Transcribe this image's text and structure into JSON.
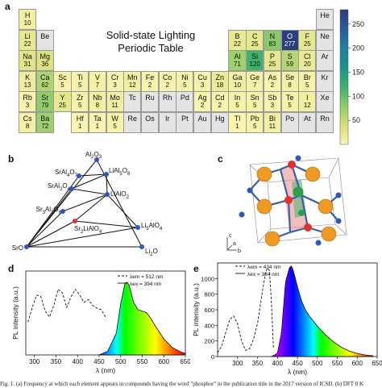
{
  "panel_a": {
    "letter": "a",
    "title_line1": "Solid-state Lighting",
    "title_line2": "Periodic Table",
    "colorbar": {
      "ticks": [
        250,
        200,
        150,
        100,
        50
      ],
      "range": [
        0,
        280
      ],
      "colors": [
        "#fbf5b0",
        "#d8e07a",
        "#8ecb6a",
        "#3fb06d",
        "#17968a",
        "#1f7fa0",
        "#2a5d96",
        "#2c3a7a"
      ]
    },
    "elements": [
      {
        "s": "H",
        "n": "10",
        "r": 0,
        "c": 0,
        "v": 10
      },
      {
        "s": "He",
        "n": "",
        "r": 0,
        "c": 17,
        "v": null
      },
      {
        "s": "Li",
        "n": "22",
        "r": 1,
        "c": 0,
        "v": 22
      },
      {
        "s": "Be",
        "n": "",
        "r": 1,
        "c": 1,
        "v": null
      },
      {
        "s": "B",
        "n": "22",
        "r": 1,
        "c": 12,
        "v": 22
      },
      {
        "s": "C",
        "n": "25",
        "r": 1,
        "c": 13,
        "v": 25
      },
      {
        "s": "N",
        "n": "83",
        "r": 1,
        "c": 14,
        "v": 83
      },
      {
        "s": "O",
        "n": "277",
        "r": 1,
        "c": 15,
        "v": 277
      },
      {
        "s": "F",
        "n": "25",
        "r": 1,
        "c": 16,
        "v": 25
      },
      {
        "s": "Ne",
        "n": "",
        "r": 1,
        "c": 17,
        "v": null
      },
      {
        "s": "Na",
        "n": "31",
        "r": 2,
        "c": 0,
        "v": 31
      },
      {
        "s": "Mg",
        "n": "36",
        "r": 2,
        "c": 1,
        "v": 36
      },
      {
        "s": "Al",
        "n": "71",
        "r": 2,
        "c": 12,
        "v": 71
      },
      {
        "s": "Si",
        "n": "120",
        "r": 2,
        "c": 13,
        "v": 120
      },
      {
        "s": "P",
        "n": "25",
        "r": 2,
        "c": 14,
        "v": 25
      },
      {
        "s": "S",
        "n": "59",
        "r": 2,
        "c": 15,
        "v": 59
      },
      {
        "s": "Cl",
        "n": "20",
        "r": 2,
        "c": 16,
        "v": 20
      },
      {
        "s": "Ar",
        "n": "",
        "r": 2,
        "c": 17,
        "v": null
      },
      {
        "s": "K",
        "n": "13",
        "r": 3,
        "c": 0,
        "v": 13
      },
      {
        "s": "Ca",
        "n": "62",
        "r": 3,
        "c": 1,
        "v": 62
      },
      {
        "s": "Sc",
        "n": "5",
        "r": 3,
        "c": 2,
        "v": 5
      },
      {
        "s": "Ti",
        "n": "5",
        "r": 3,
        "c": 3,
        "v": 5
      },
      {
        "s": "V",
        "n": "7",
        "r": 3,
        "c": 4,
        "v": 7
      },
      {
        "s": "Cr",
        "n": "3",
        "r": 3,
        "c": 5,
        "v": 3
      },
      {
        "s": "Mn",
        "n": "12",
        "r": 3,
        "c": 6,
        "v": 12
      },
      {
        "s": "Fe",
        "n": "2",
        "r": 3,
        "c": 7,
        "v": 2
      },
      {
        "s": "Co",
        "n": "2",
        "r": 3,
        "c": 8,
        "v": 2
      },
      {
        "s": "Ni",
        "n": "5",
        "r": 3,
        "c": 9,
        "v": 5
      },
      {
        "s": "Cu",
        "n": "3",
        "r": 3,
        "c": 10,
        "v": 3
      },
      {
        "s": "Zn",
        "n": "18",
        "r": 3,
        "c": 11,
        "v": 18
      },
      {
        "s": "Ga",
        "n": "10",
        "r": 3,
        "c": 12,
        "v": 10
      },
      {
        "s": "Ge",
        "n": "7",
        "r": 3,
        "c": 13,
        "v": 7
      },
      {
        "s": "As",
        "n": "2",
        "r": 3,
        "c": 14,
        "v": 2
      },
      {
        "s": "Se",
        "n": "8",
        "r": 3,
        "c": 15,
        "v": 8
      },
      {
        "s": "Br",
        "n": "5",
        "r": 3,
        "c": 16,
        "v": 5
      },
      {
        "s": "Kr",
        "n": "",
        "r": 3,
        "c": 17,
        "v": null
      },
      {
        "s": "Rb",
        "n": "3",
        "r": 4,
        "c": 0,
        "v": 3
      },
      {
        "s": "Sr",
        "n": "79",
        "r": 4,
        "c": 1,
        "v": 79
      },
      {
        "s": "Y",
        "n": "25",
        "r": 4,
        "c": 2,
        "v": 25
      },
      {
        "s": "Zr",
        "n": "5",
        "r": 4,
        "c": 3,
        "v": 5
      },
      {
        "s": "Nb",
        "n": "8",
        "r": 4,
        "c": 4,
        "v": 8
      },
      {
        "s": "Mo",
        "n": "11",
        "r": 4,
        "c": 5,
        "v": 11
      },
      {
        "s": "Tc",
        "n": "",
        "r": 4,
        "c": 6,
        "v": null
      },
      {
        "s": "Ru",
        "n": "",
        "r": 4,
        "c": 7,
        "v": null
      },
      {
        "s": "Rh",
        "n": "",
        "r": 4,
        "c": 8,
        "v": null
      },
      {
        "s": "Pd",
        "n": "",
        "r": 4,
        "c": 9,
        "v": null
      },
      {
        "s": "Ag",
        "n": "2",
        "r": 4,
        "c": 10,
        "v": 2
      },
      {
        "s": "Cd",
        "n": "2",
        "r": 4,
        "c": 11,
        "v": 2
      },
      {
        "s": "In",
        "n": "5",
        "r": 4,
        "c": 12,
        "v": 5
      },
      {
        "s": "Sn",
        "n": "5",
        "r": 4,
        "c": 13,
        "v": 5
      },
      {
        "s": "Sb",
        "n": "3",
        "r": 4,
        "c": 14,
        "v": 3
      },
      {
        "s": "Te",
        "n": "5",
        "r": 4,
        "c": 15,
        "v": 5
      },
      {
        "s": "I",
        "n": "12",
        "r": 4,
        "c": 16,
        "v": 12
      },
      {
        "s": "Xe",
        "n": "",
        "r": 4,
        "c": 17,
        "v": null
      },
      {
        "s": "Cs",
        "n": "8",
        "r": 5,
        "c": 0,
        "v": 8
      },
      {
        "s": "Ba",
        "n": "72",
        "r": 5,
        "c": 1,
        "v": 72
      },
      {
        "s": "Hf",
        "n": "1",
        "r": 5,
        "c": 3,
        "v": 1
      },
      {
        "s": "Ta",
        "n": "1",
        "r": 5,
        "c": 4,
        "v": 1
      },
      {
        "s": "W",
        "n": "5",
        "r": 5,
        "c": 5,
        "v": 5
      },
      {
        "s": "Re",
        "n": "",
        "r": 5,
        "c": 6,
        "v": null
      },
      {
        "s": "Os",
        "n": "",
        "r": 5,
        "c": 7,
        "v": null
      },
      {
        "s": "Ir",
        "n": "",
        "r": 5,
        "c": 8,
        "v": null
      },
      {
        "s": "Pt",
        "n": "",
        "r": 5,
        "c": 9,
        "v": null
      },
      {
        "s": "Au",
        "n": "",
        "r": 5,
        "c": 10,
        "v": null
      },
      {
        "s": "Hg",
        "n": "",
        "r": 5,
        "c": 11,
        "v": null
      },
      {
        "s": "Tl",
        "n": "1",
        "r": 5,
        "c": 12,
        "v": 1
      },
      {
        "s": "Pb",
        "n": "5",
        "r": 5,
        "c": 13,
        "v": 5
      },
      {
        "s": "Bi",
        "n": "11",
        "r": 5,
        "c": 14,
        "v": 11
      },
      {
        "s": "Po",
        "n": "",
        "r": 5,
        "c": 15,
        "v": null
      },
      {
        "s": "At",
        "n": "",
        "r": 5,
        "c": 16,
        "v": null
      },
      {
        "s": "Rn",
        "n": "",
        "r": 5,
        "c": 17,
        "v": null
      }
    ]
  },
  "panel_b": {
    "letter": "b",
    "vertices": [
      "Al",
      "2",
      "O",
      "3",
      "SrO",
      "Li",
      "2",
      "O"
    ],
    "labels": [
      {
        "main": "Al",
        "parts": [
          [
            "Al",
            ""
          ],
          [
            "2",
            "sub"
          ],
          [
            "O",
            ""
          ],
          [
            "3",
            "sub"
          ]
        ]
      },
      {
        "main": "SrAl4O7",
        "parts": [
          [
            "SrAl",
            ""
          ],
          [
            "4",
            "sub"
          ],
          [
            "O",
            ""
          ],
          [
            "7",
            "sub"
          ]
        ]
      },
      {
        "main": "LiAl5O8",
        "parts": [
          [
            "LiAl",
            ""
          ],
          [
            "5",
            "sub"
          ],
          [
            "O",
            ""
          ],
          [
            "8",
            "sub"
          ]
        ]
      },
      {
        "main": "SrAl2O4",
        "parts": [
          [
            "SrAl",
            ""
          ],
          [
            "2",
            "sub"
          ],
          [
            "O",
            ""
          ],
          [
            "4",
            "sub"
          ]
        ]
      },
      {
        "main": "LiAlO2",
        "parts": [
          [
            "LiAlO",
            ""
          ],
          [
            "2",
            "sub"
          ]
        ]
      },
      {
        "main": "Sr3Al2O6",
        "parts": [
          [
            "Sr",
            ""
          ],
          [
            "3",
            "sub"
          ],
          [
            "Al",
            ""
          ],
          [
            "2",
            "sub"
          ],
          [
            "O",
            ""
          ],
          [
            "6",
            "sub"
          ]
        ]
      },
      {
        "main": "Sr2LiAlO4",
        "parts": [
          [
            "Sr",
            ""
          ],
          [
            "2",
            "sub"
          ],
          [
            "LiAlO",
            ""
          ],
          [
            "4",
            "sub"
          ]
        ]
      },
      {
        "main": "Li5AlO4",
        "parts": [
          [
            "Li",
            ""
          ],
          [
            "5",
            "sub"
          ],
          [
            "AlO",
            ""
          ],
          [
            "4",
            "sub"
          ]
        ]
      },
      {
        "main": "SrO",
        "parts": [
          [
            "SrO",
            ""
          ]
        ]
      },
      {
        "main": "Li2O",
        "parts": [
          [
            "Li",
            ""
          ],
          [
            "2",
            "sub"
          ],
          [
            "O",
            ""
          ]
        ]
      }
    ]
  },
  "panel_c": {
    "letter": "c",
    "axes": [
      "c",
      "b",
      "a"
    ]
  },
  "panel_d": {
    "letter": "d",
    "ylabel": "PL intensity (a.u.)",
    "xlabel": "λ (nm)",
    "xticks": [
      300,
      350,
      400,
      450,
      500,
      550,
      600,
      650
    ],
    "legend_em": "λem = 512 nm",
    "legend_ex": "λex = 394 nm"
  },
  "panel_e": {
    "letter": "e",
    "ylabel": "PL intensity (a.u.)",
    "xlabel": "λ (nm)",
    "xticks": [
      300,
      350,
      400,
      450,
      500,
      550,
      600,
      650
    ],
    "yticks": [
      0,
      200,
      400,
      600,
      800,
      1000
    ],
    "legend_em": "λem = 434 nm",
    "legend_ex": "λex = 384 nm"
  },
  "chart_data": [
    {
      "type": "line",
      "panel": "d",
      "xlabel": "λ (nm)",
      "ylabel": "PL intensity (a.u.)",
      "xlim": [
        280,
        650
      ],
      "series": [
        {
          "name": "λem = 512 nm",
          "style": "dashed",
          "x": [
            285,
            295,
            305,
            315,
            325,
            335,
            345,
            355,
            365,
            375,
            385,
            395,
            405,
            415,
            425,
            435,
            445,
            455,
            465
          ],
          "y": [
            0.45,
            0.65,
            0.82,
            0.8,
            0.6,
            0.52,
            0.68,
            0.9,
            0.85,
            0.65,
            0.8,
            0.9,
            0.82,
            0.72,
            0.76,
            0.68,
            0.64,
            0.62,
            0.52
          ]
        },
        {
          "name": "λex = 394 nm",
          "style": "filled-spectrum",
          "x": [
            450,
            470,
            490,
            500,
            510,
            515,
            520,
            530,
            540,
            550,
            560,
            570,
            580,
            600,
            620,
            640,
            650
          ],
          "y": [
            0.0,
            0.05,
            0.3,
            0.7,
            0.98,
            1.0,
            0.95,
            0.72,
            0.62,
            0.6,
            0.58,
            0.5,
            0.4,
            0.22,
            0.1,
            0.04,
            0.02
          ]
        }
      ]
    },
    {
      "type": "line",
      "panel": "e",
      "xlabel": "λ (nm)",
      "ylabel": "PL intensity (a.u.)",
      "xlim": [
        250,
        650
      ],
      "ylim": [
        0,
        1200
      ],
      "series": [
        {
          "name": "λem = 434 nm",
          "style": "dashed",
          "x": [
            250,
            260,
            270,
            280,
            290,
            300,
            310,
            320,
            330,
            340,
            350,
            360,
            370,
            375,
            380,
            385,
            390
          ],
          "y": [
            50,
            130,
            300,
            470,
            520,
            420,
            200,
            80,
            100,
            220,
            420,
            760,
            1070,
            1140,
            1100,
            700,
            100
          ]
        },
        {
          "name": "λex = 384 nm",
          "style": "filled-spectrum",
          "x": [
            385,
            400,
            410,
            420,
            430,
            435,
            440,
            450,
            460,
            470,
            480,
            500,
            520,
            540,
            560,
            580,
            600,
            620,
            640
          ],
          "y": [
            0,
            40,
            300,
            950,
            1140,
            1160,
            1100,
            900,
            720,
            600,
            520,
            390,
            280,
            190,
            120,
            70,
            40,
            20,
            10
          ]
        }
      ]
    }
  ],
  "caption": "Fig. 1. (a) Frequency at which each element appears in compounds having the word \"phosphor\" in the publication title in the 2017 version of ICSD. (b) DFT 0 K"
}
